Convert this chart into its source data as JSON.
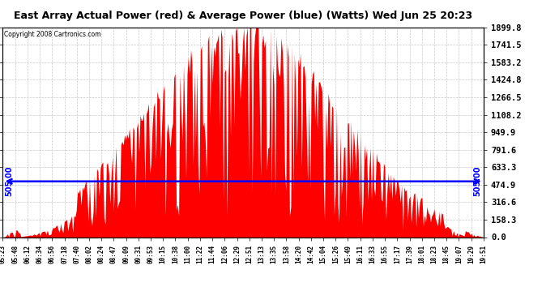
{
  "title": "East Array Actual Power (red) & Average Power (blue) (Watts) Wed Jun 25 20:23",
  "copyright": "Copyright 2008 Cartronics.com",
  "y_ticks": [
    0.0,
    158.3,
    316.6,
    474.9,
    633.3,
    791.6,
    949.9,
    1108.2,
    1266.5,
    1424.8,
    1583.2,
    1741.5,
    1899.8
  ],
  "y_max": 1899.8,
  "y_min": 0.0,
  "average_power": 505.0,
  "bar_color": "#FF0000",
  "avg_line_color": "#0000FF",
  "background_color": "#FFFFFF",
  "grid_color": "#BBBBBB",
  "x_labels": [
    "05:23",
    "05:48",
    "06:12",
    "06:34",
    "06:56",
    "07:18",
    "07:40",
    "08:02",
    "08:24",
    "08:47",
    "09:09",
    "09:31",
    "09:53",
    "10:15",
    "10:38",
    "11:00",
    "11:22",
    "11:44",
    "12:06",
    "12:29",
    "12:51",
    "13:13",
    "13:35",
    "13:58",
    "14:20",
    "14:42",
    "15:04",
    "15:26",
    "15:49",
    "16:11",
    "16:33",
    "16:55",
    "17:17",
    "17:39",
    "18:01",
    "18:23",
    "18:45",
    "19:07",
    "19:29",
    "19:51"
  ],
  "num_points": 400
}
